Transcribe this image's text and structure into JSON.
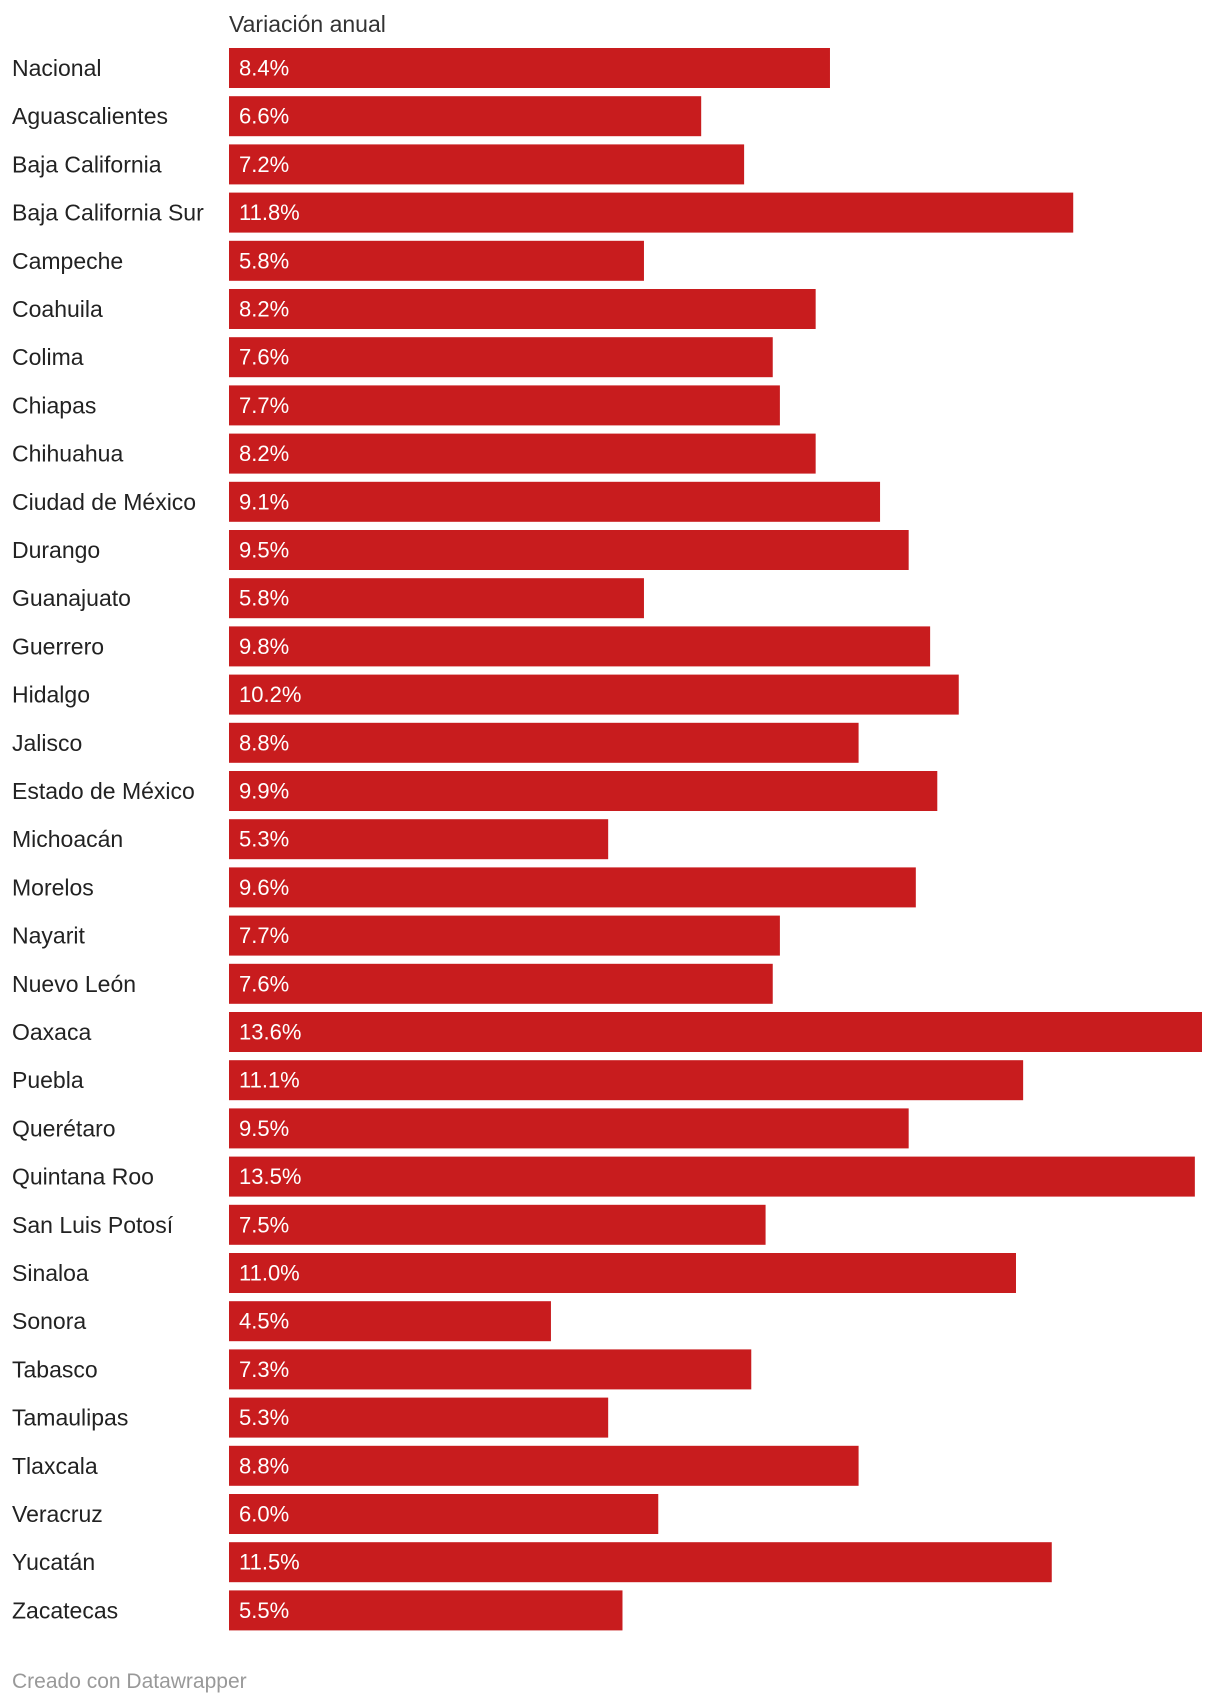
{
  "chart_data": {
    "type": "bar",
    "orientation": "horizontal",
    "column_header": "Variación anual",
    "unit_suffix": "%",
    "bar_color": "#c81c1e",
    "categories": [
      "Nacional",
      "Aguascalientes",
      "Baja California",
      "Baja California Sur",
      "Campeche",
      "Coahuila",
      "Colima",
      "Chiapas",
      "Chihuahua",
      "Ciudad de México",
      "Durango",
      "Guanajuato",
      "Guerrero",
      "Hidalgo",
      "Jalisco",
      "Estado de México",
      "Michoacán",
      "Morelos",
      "Nayarit",
      "Nuevo León",
      "Oaxaca",
      "Puebla",
      "Querétaro",
      "Quintana Roo",
      "San Luis Potosí",
      "Sinaloa",
      "Sonora",
      "Tabasco",
      "Tamaulipas",
      "Tlaxcala",
      "Veracruz",
      "Yucatán",
      "Zacatecas"
    ],
    "values": [
      8.4,
      6.6,
      7.2,
      11.8,
      5.8,
      8.2,
      7.6,
      7.7,
      8.2,
      9.1,
      9.5,
      5.8,
      9.8,
      10.2,
      8.8,
      9.9,
      5.3,
      9.6,
      7.7,
      7.6,
      13.6,
      11.1,
      9.5,
      13.5,
      7.5,
      11.0,
      4.5,
      7.3,
      5.3,
      8.8,
      6.0,
      11.5,
      5.5
    ],
    "value_labels": [
      "8.4%",
      "6.6%",
      "7.2%",
      "11.8%",
      "5.8%",
      "8.2%",
      "7.6%",
      "7.7%",
      "8.2%",
      "9.1%",
      "9.5%",
      "5.8%",
      "9.8%",
      "10.2%",
      "8.8%",
      "9.9%",
      "5.3%",
      "9.6%",
      "7.7%",
      "7.6%",
      "13.6%",
      "11.1%",
      "9.5%",
      "13.5%",
      "7.5%",
      "11.0%",
      "4.5%",
      "7.3%",
      "5.3%",
      "8.8%",
      "6.0%",
      "11.5%",
      "5.5%"
    ],
    "xlim": [
      0,
      13.6
    ],
    "grid": false
  },
  "footer": {
    "credit": "Creado con Datawrapper"
  }
}
